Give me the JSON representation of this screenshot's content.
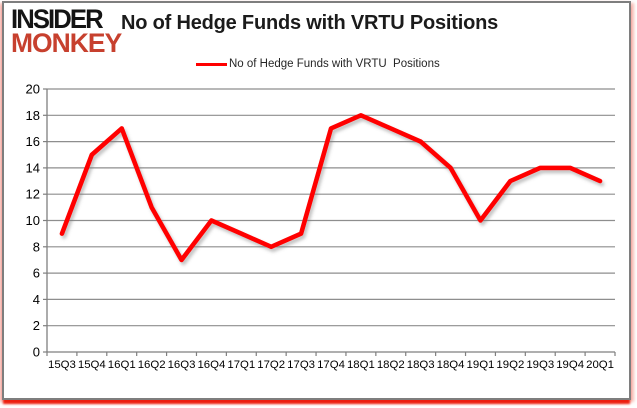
{
  "branding": {
    "logo_line1": "INSIDER",
    "logo_line2": "MONKEY"
  },
  "header": {
    "title": "No of Hedge Funds with VRTU Positions"
  },
  "legend": {
    "label": "No of Hedge Funds with VRTU  Positions"
  },
  "colors": {
    "series_red": "#ff0000",
    "logo_red": "#c7402e",
    "logo_black": "#141414",
    "gridline": "#8e8e8e",
    "axis": "#7f7f7f",
    "tick_label": "#000000",
    "frame_border": "#7e7e7e",
    "bottom_glow": "#ec1606"
  },
  "chart_data": {
    "type": "line",
    "title": "No of Hedge Funds with VRTU Positions",
    "categories": [
      "15Q3",
      "15Q4",
      "16Q1",
      "16Q2",
      "16Q3",
      "16Q4",
      "17Q1",
      "17Q2",
      "17Q3",
      "17Q4",
      "18Q1",
      "18Q2",
      "18Q3",
      "18Q4",
      "19Q1",
      "19Q2",
      "19Q3",
      "19Q4",
      "20Q1"
    ],
    "series": [
      {
        "name": "No of Hedge Funds with VRTU Positions",
        "color": "#ff0000",
        "values": [
          9,
          15,
          17,
          11,
          7,
          10,
          9,
          8,
          9,
          17,
          18,
          17,
          16,
          14,
          10,
          13,
          14,
          14,
          13
        ]
      }
    ],
    "ylim": [
      0,
      20
    ],
    "yticks": [
      0,
      2,
      4,
      6,
      8,
      10,
      12,
      14,
      16,
      18,
      20
    ],
    "xlabel": "",
    "ylabel": "",
    "grid": true,
    "legend_position": "top-center"
  }
}
